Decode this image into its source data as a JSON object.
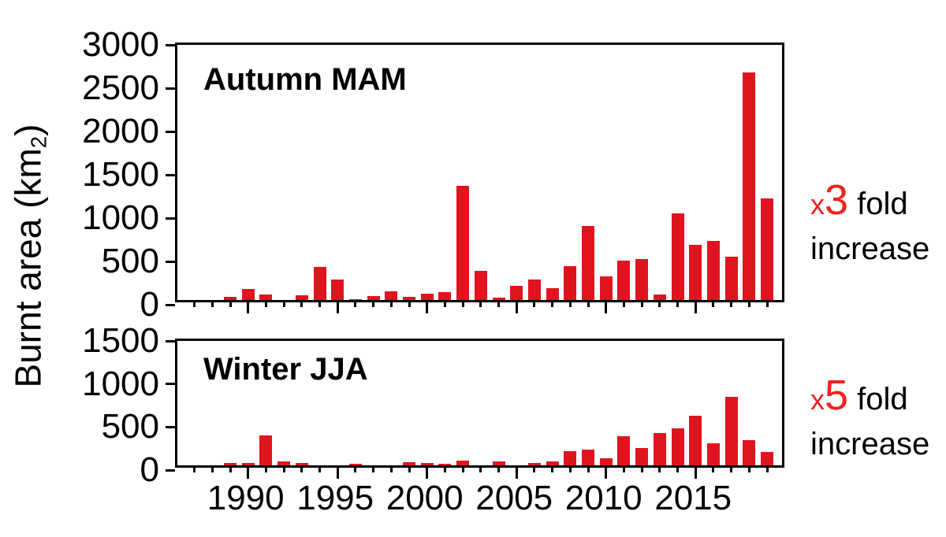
{
  "figure": {
    "ylabel": {
      "main": "Burnt area (km",
      "sub": "2",
      "close": ")"
    },
    "colors": {
      "bar": "#e0141f",
      "accent_red": "#f2201e",
      "axis": "#000000",
      "background": "#ffffff"
    }
  },
  "annotations": [
    {
      "multiplier_prefix": "x",
      "multiplier_value": "3",
      "suffix": " fold",
      "line2": "increase"
    },
    {
      "multiplier_prefix": "x",
      "multiplier_value": "5",
      "suffix": " fold",
      "line2": "increase"
    }
  ],
  "chart_data": [
    {
      "type": "bar",
      "panel": "top",
      "title": "Autumn MAM",
      "ylabel": "Burnt area (km2)",
      "ylim": [
        0,
        3000
      ],
      "yticks": [
        0,
        500,
        1000,
        1500,
        2000,
        2500,
        3000
      ],
      "xlim": [
        1986,
        2020
      ],
      "xticks_labeled": [
        1990,
        1995,
        2000,
        2005,
        2010,
        2015
      ],
      "grid": false,
      "categories": [
        1988,
        1989,
        1990,
        1991,
        1992,
        1993,
        1994,
        1995,
        1996,
        1997,
        1998,
        1999,
        2000,
        2001,
        2002,
        2003,
        2004,
        2005,
        2006,
        2007,
        2008,
        2009,
        2010,
        2011,
        2012,
        2013,
        2014,
        2015,
        2016,
        2017,
        2018,
        2019
      ],
      "values": [
        0,
        35,
        130,
        65,
        0,
        55,
        390,
        240,
        10,
        50,
        100,
        35,
        70,
        90,
        1340,
        340,
        30,
        165,
        245,
        135,
        400,
        875,
        275,
        460,
        480,
        65,
        1020,
        645,
        690,
        505,
        2680,
        1190
      ]
    },
    {
      "type": "bar",
      "panel": "bottom",
      "title": "Winter JJA",
      "ylabel": "Burnt area (km2)",
      "ylim": [
        0,
        1500
      ],
      "yticks": [
        0,
        500,
        1000,
        1500
      ],
      "xlim": [
        1986,
        2020
      ],
      "xticks_labeled": [
        1990,
        1995,
        2000,
        2005,
        2010,
        2015
      ],
      "grid": false,
      "categories": [
        1988,
        1989,
        1990,
        1991,
        1992,
        1993,
        1994,
        1995,
        1996,
        1997,
        1998,
        1999,
        2000,
        2001,
        2002,
        2003,
        2004,
        2005,
        2006,
        2007,
        2008,
        2009,
        2010,
        2011,
        2012,
        2013,
        2014,
        2015,
        2016,
        2017,
        2018,
        2019
      ],
      "values": [
        0,
        25,
        30,
        365,
        45,
        30,
        0,
        0,
        20,
        0,
        0,
        40,
        30,
        20,
        60,
        0,
        50,
        0,
        30,
        45,
        170,
        190,
        90,
        350,
        205,
        385,
        450,
        600,
        270,
        830,
        305,
        160
      ]
    }
  ]
}
